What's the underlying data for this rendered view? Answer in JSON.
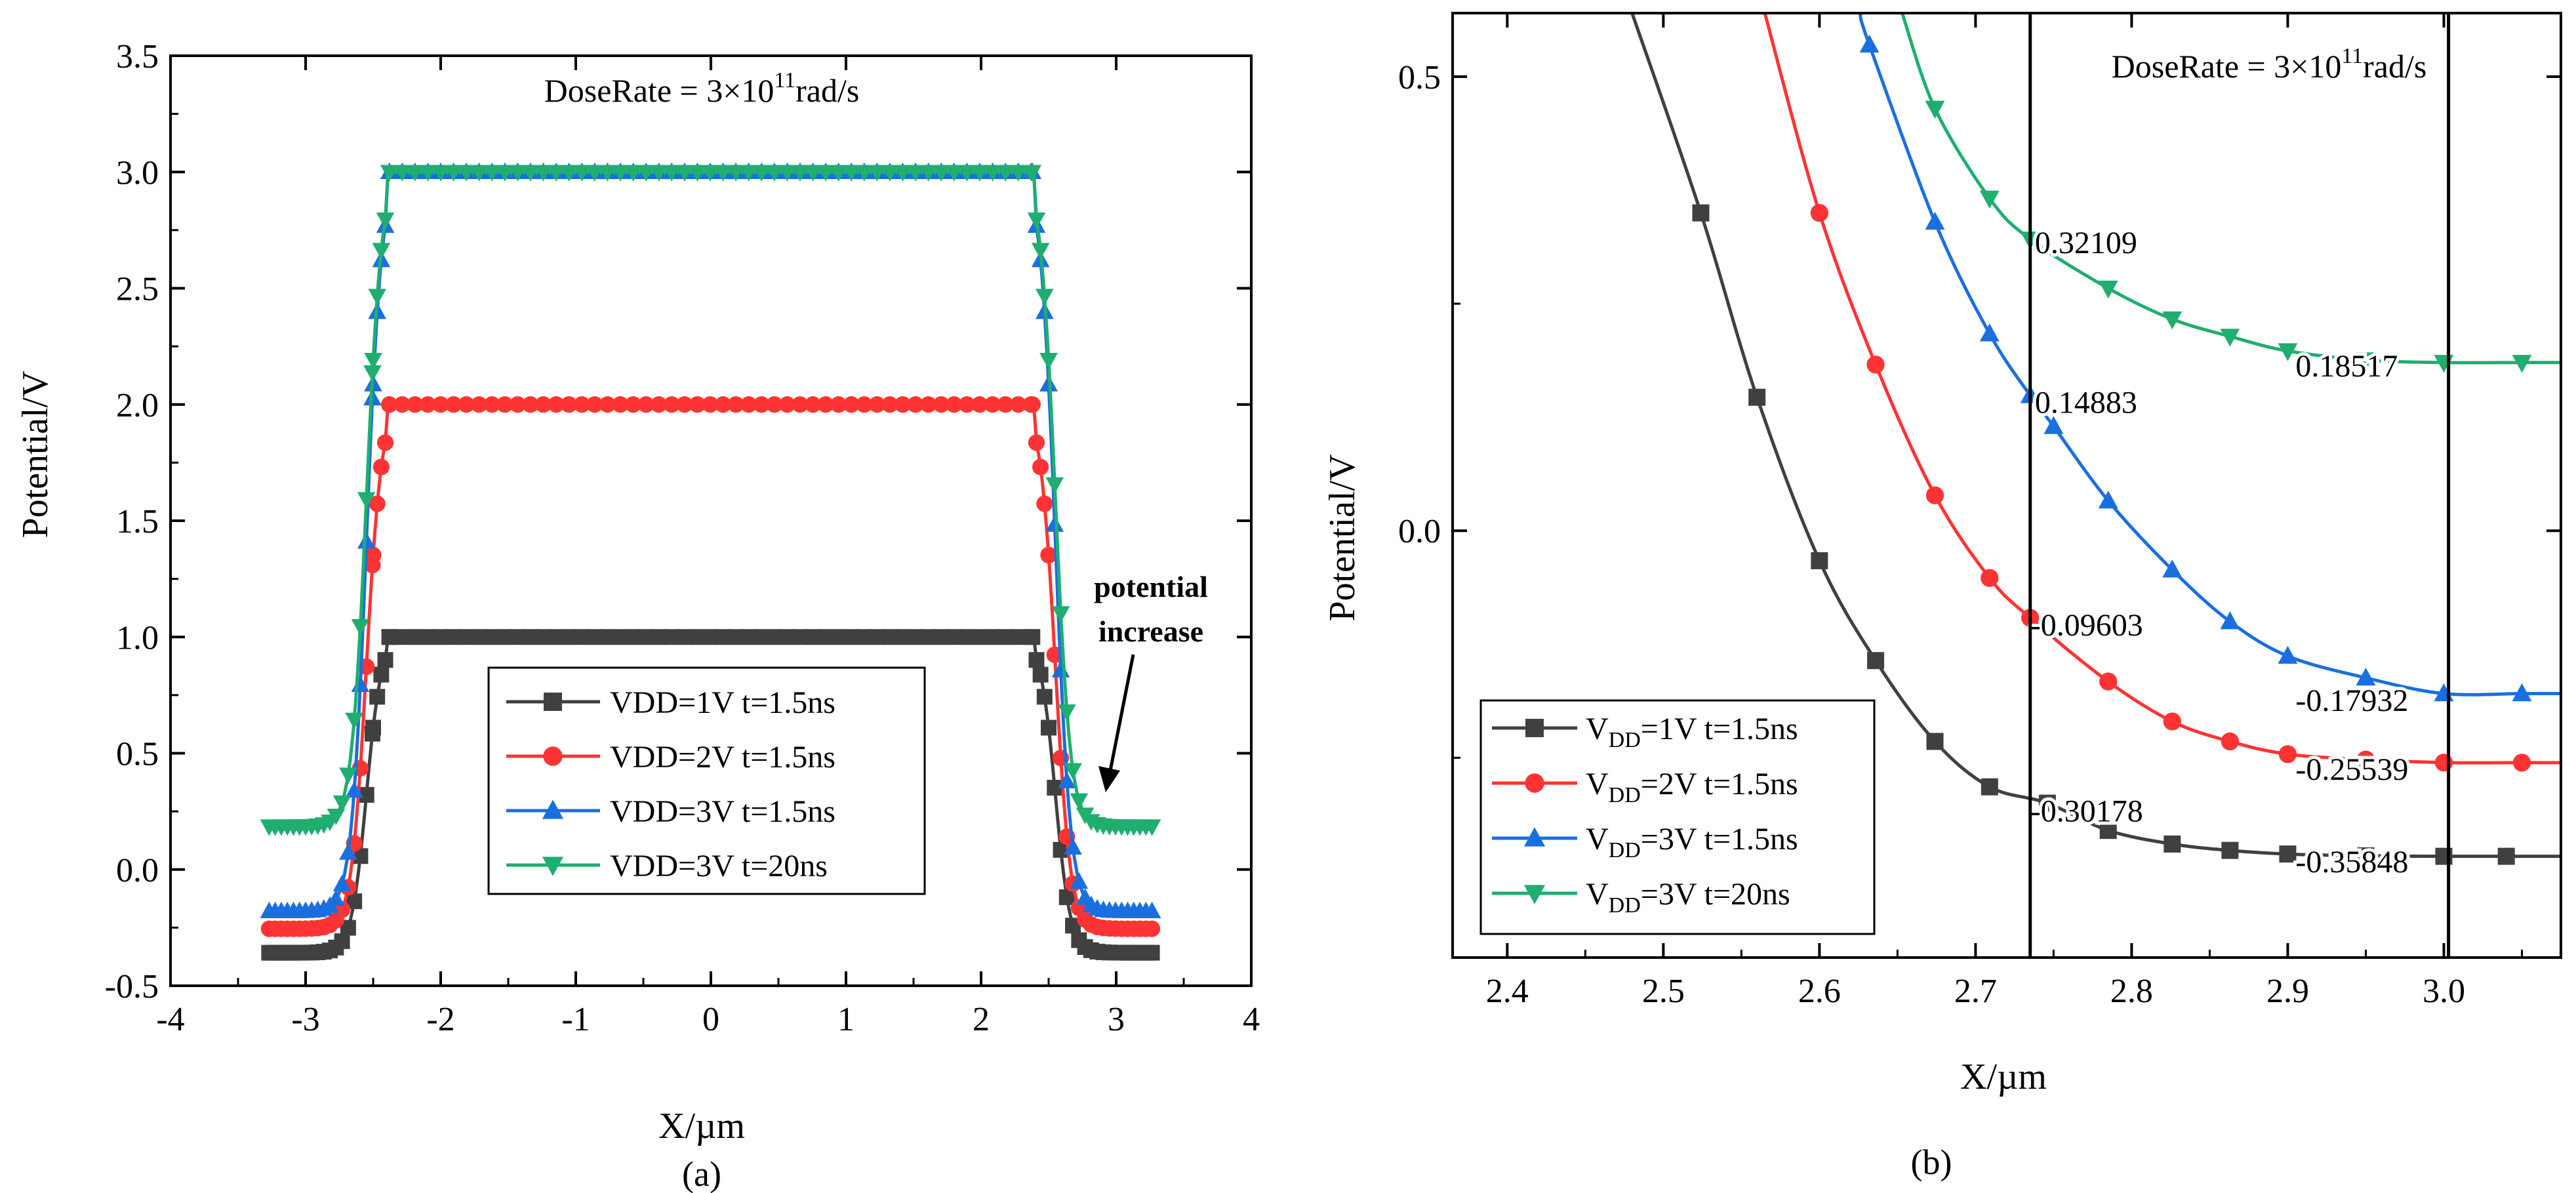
{
  "chart_data": [
    {
      "type": "scatter",
      "panel_label": "(a)",
      "xlabel": "X/µm",
      "ylabel": "Potential/V",
      "xlim": [
        -4,
        4
      ],
      "ylim": [
        -0.5,
        3.5
      ],
      "xticks": [
        -4,
        -3,
        -2,
        -1,
        0,
        1,
        2,
        3,
        4
      ],
      "yticks": [
        -0.5,
        0.0,
        0.5,
        1.0,
        1.5,
        2.0,
        2.5,
        3.0,
        3.5
      ],
      "grid": false,
      "annotation": {
        "base": "DoseRate = 3×10",
        "sup": "11",
        "tail": "rad/s"
      },
      "arrow_label": [
        "potential",
        "increase"
      ],
      "legend_position": "lower-center",
      "series": [
        {
          "name": "VDD=1V t=1.5ns",
          "color": "#404040",
          "marker": "square",
          "level": 1.0,
          "tail": -0.358
        },
        {
          "name": "VDD=2V t=1.5ns",
          "color": "#ff3333",
          "marker": "circle",
          "level": 2.0,
          "tail": -0.255
        },
        {
          "name": "VDD=3V t=1.5ns",
          "color": "#1a6fe0",
          "marker": "triangle-up",
          "level": 3.0,
          "tail": -0.179
        },
        {
          "name": "VDD=3V t=20ns",
          "color": "#1fae70",
          "marker": "triangle-down",
          "level": 3.0,
          "tail": 0.185
        }
      ]
    },
    {
      "type": "line",
      "panel_label": "(b)",
      "xlabel": "X/µm",
      "ylabel": "Potential/V",
      "xlim": [
        2.365,
        3.075
      ],
      "ylim": [
        -0.47,
        0.57
      ],
      "xticks": [
        2.4,
        2.5,
        2.6,
        2.7,
        2.8,
        2.9,
        3.0
      ],
      "yticks": [
        0.0,
        0.5
      ],
      "grid": false,
      "annotation": {
        "base": "DoseRate = 3×10",
        "sup": "11",
        "tail": "rad/s"
      },
      "vlines": [
        2.735,
        3.003
      ],
      "legend_position": "lower-left",
      "series": [
        {
          "name": "V",
          "sub": "DD",
          "rest": "=1V t=1.5ns",
          "color": "#404040",
          "marker": "square",
          "x": [
            2.48,
            2.524,
            2.56,
            2.6,
            2.636,
            2.674,
            2.709,
            2.746,
            2.785,
            2.826,
            2.863,
            2.9,
            2.95,
            3.0,
            3.04,
            3.075
          ],
          "y": [
            0.57,
            0.35,
            0.147,
            -0.033,
            -0.143,
            -0.232,
            -0.282,
            -0.3,
            -0.33,
            -0.345,
            -0.352,
            -0.356,
            -0.358,
            -0.3585,
            -0.3585,
            -0.3585
          ]
        },
        {
          "name": "V",
          "sub": "DD",
          "rest": "=2V t=1.5ns",
          "color": "#ff3333",
          "marker": "circle",
          "x": [
            2.565,
            2.6,
            2.636,
            2.674,
            2.709,
            2.735,
            2.785,
            2.826,
            2.863,
            2.9,
            2.95,
            3.0,
            3.05,
            3.075
          ],
          "y": [
            0.57,
            0.35,
            0.183,
            0.039,
            -0.052,
            -0.096,
            -0.166,
            -0.21,
            -0.232,
            -0.246,
            -0.252,
            -0.2553,
            -0.2554,
            -0.2554
          ]
        },
        {
          "name": "V",
          "sub": "DD",
          "rest": "=3V t=1.5ns",
          "color": "#1a6fe0",
          "marker": "triangle-up",
          "x": [
            2.626,
            2.632,
            2.674,
            2.709,
            2.735,
            2.75,
            2.785,
            2.826,
            2.863,
            2.9,
            2.95,
            3.0,
            3.05,
            3.075
          ],
          "y": [
            0.57,
            0.535,
            0.34,
            0.217,
            0.149,
            0.115,
            0.033,
            -0.043,
            -0.1,
            -0.138,
            -0.162,
            -0.1793,
            -0.1793,
            -0.1793
          ]
        },
        {
          "name": "V",
          "sub": "DD",
          "rest": "=3V t=20ns",
          "color": "#1fae70",
          "marker": "triangle-down",
          "x": [
            2.653,
            2.674,
            2.709,
            2.735,
            2.785,
            2.826,
            2.863,
            2.9,
            2.95,
            3.0,
            3.05,
            3.075
          ],
          "y": [
            0.57,
            0.465,
            0.366,
            0.321,
            0.267,
            0.233,
            0.214,
            0.198,
            0.188,
            0.1852,
            0.1852,
            0.1852
          ]
        }
      ],
      "value_labels": [
        {
          "text": "0.32109",
          "color": "#1fae70",
          "x": 2.738,
          "y": 0.318
        },
        {
          "text": "0.18517",
          "color": "#1fae70",
          "x": 2.905,
          "y": 0.182
        },
        {
          "text": "0.14883",
          "color": "#1a6fe0",
          "x": 2.738,
          "y": 0.142
        },
        {
          "text": "-0.09603",
          "color": "#ff3333",
          "x": 2.735,
          "y": -0.103
        },
        {
          "text": "-0.17932",
          "color": "#1a6fe0",
          "x": 2.905,
          "y": -0.186
        },
        {
          "text": "-0.25539",
          "color": "#ff3333",
          "x": 2.905,
          "y": -0.262
        },
        {
          "text": "-0.30178",
          "color": "#404040",
          "x": 2.735,
          "y": -0.308
        },
        {
          "text": "-0.35848",
          "color": "#404040",
          "x": 2.905,
          "y": -0.364
        }
      ]
    }
  ]
}
